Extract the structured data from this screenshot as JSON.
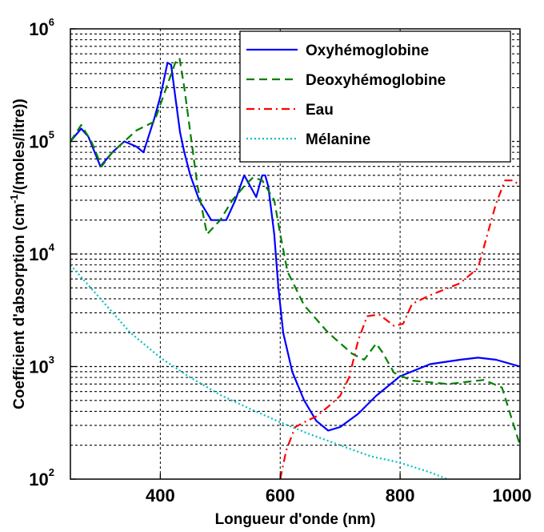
{
  "chart_data": {
    "type": "line",
    "xlabel": "Longueur d'onde (nm)",
    "ylabel_parts": [
      "Coefficient d'absorption (cm",
      "-1",
      "/(moles/litre))"
    ],
    "xlim": [
      250,
      1000
    ],
    "ylim": [
      100,
      1000000
    ],
    "yscale": "log",
    "grid": "dotted",
    "legend_position": "top-right",
    "x_ticks": [
      {
        "value": 400,
        "label": "400"
      },
      {
        "value": 600,
        "label": "600"
      },
      {
        "value": 800,
        "label": "800"
      },
      {
        "value": 1000,
        "label": "1000"
      }
    ],
    "y_ticks": [
      {
        "value": 100,
        "base": "10",
        "exp": "2"
      },
      {
        "value": 1000,
        "base": "10",
        "exp": "3"
      },
      {
        "value": 10000,
        "base": "10",
        "exp": "4"
      },
      {
        "value": 100000,
        "base": "10",
        "exp": "5"
      },
      {
        "value": 1000000,
        "base": "10",
        "exp": "6"
      }
    ],
    "series": [
      {
        "name": "Oxyhémoglobine",
        "color": "#0000ff",
        "style": "solid",
        "points": [
          [
            250,
            100000
          ],
          [
            268,
            130000
          ],
          [
            280,
            110000
          ],
          [
            300,
            60000
          ],
          [
            320,
            80000
          ],
          [
            340,
            100000
          ],
          [
            360,
            90000
          ],
          [
            372,
            80000
          ],
          [
            390,
            160000
          ],
          [
            400,
            250000
          ],
          [
            412,
            500000
          ],
          [
            418,
            480000
          ],
          [
            425,
            250000
          ],
          [
            433,
            120000
          ],
          [
            440,
            80000
          ],
          [
            450,
            50000
          ],
          [
            465,
            30000
          ],
          [
            485,
            20000
          ],
          [
            500,
            20000
          ],
          [
            510,
            20000
          ],
          [
            525,
            30000
          ],
          [
            540,
            50000
          ],
          [
            550,
            40000
          ],
          [
            560,
            32000
          ],
          [
            570,
            50000
          ],
          [
            575,
            50000
          ],
          [
            580,
            40000
          ],
          [
            590,
            15000
          ],
          [
            597,
            5000
          ],
          [
            605,
            2000
          ],
          [
            620,
            900
          ],
          [
            640,
            500
          ],
          [
            660,
            330
          ],
          [
            680,
            270
          ],
          [
            700,
            290
          ],
          [
            730,
            380
          ],
          [
            760,
            550
          ],
          [
            800,
            820
          ],
          [
            850,
            1050
          ],
          [
            900,
            1150
          ],
          [
            930,
            1200
          ],
          [
            960,
            1150
          ],
          [
            1000,
            1000
          ]
        ]
      },
      {
        "name": "Deoxyhémoglobine",
        "color": "#008000",
        "style": "dashed",
        "points": [
          [
            250,
            100000
          ],
          [
            268,
            140000
          ],
          [
            285,
            100000
          ],
          [
            302,
            60000
          ],
          [
            320,
            80000
          ],
          [
            340,
            100000
          ],
          [
            360,
            125000
          ],
          [
            390,
            150000
          ],
          [
            410,
            300000
          ],
          [
            425,
            500000
          ],
          [
            432,
            550000
          ],
          [
            440,
            300000
          ],
          [
            450,
            120000
          ],
          [
            462,
            40000
          ],
          [
            478,
            15000
          ],
          [
            500,
            20000
          ],
          [
            520,
            30000
          ],
          [
            540,
            40000
          ],
          [
            555,
            48000
          ],
          [
            570,
            45000
          ],
          [
            590,
            30000
          ],
          [
            600,
            15000
          ],
          [
            612,
            7000
          ],
          [
            640,
            3500
          ],
          [
            680,
            2000
          ],
          [
            720,
            1300
          ],
          [
            740,
            1150
          ],
          [
            760,
            1600
          ],
          [
            770,
            1350
          ],
          [
            790,
            880
          ],
          [
            820,
            750
          ],
          [
            880,
            700
          ],
          [
            940,
            760
          ],
          [
            970,
            650
          ],
          [
            1000,
            200
          ]
        ]
      },
      {
        "name": "Eau",
        "color": "#ff0000",
        "style": "dashdot",
        "points": [
          [
            600,
            100
          ],
          [
            610,
            180
          ],
          [
            625,
            290
          ],
          [
            645,
            330
          ],
          [
            660,
            360
          ],
          [
            680,
            440
          ],
          [
            700,
            550
          ],
          [
            715,
            800
          ],
          [
            730,
            1700
          ],
          [
            745,
            2800
          ],
          [
            765,
            2900
          ],
          [
            790,
            2300
          ],
          [
            805,
            2400
          ],
          [
            820,
            3600
          ],
          [
            850,
            4300
          ],
          [
            900,
            5500
          ],
          [
            930,
            7500
          ],
          [
            960,
            28000
          ],
          [
            975,
            45000
          ],
          [
            990,
            45000
          ],
          [
            1000,
            40000
          ]
        ]
      },
      {
        "name": "Mélanine",
        "color": "#00c0c0",
        "style": "dotted",
        "points": [
          [
            250,
            8000
          ],
          [
            300,
            4000
          ],
          [
            350,
            2000
          ],
          [
            400,
            1200
          ],
          [
            450,
            800
          ],
          [
            500,
            560
          ],
          [
            550,
            420
          ],
          [
            600,
            320
          ],
          [
            650,
            250
          ],
          [
            700,
            200
          ],
          [
            750,
            160
          ],
          [
            800,
            140
          ],
          [
            850,
            115
          ],
          [
            900,
            90
          ]
        ]
      }
    ]
  }
}
